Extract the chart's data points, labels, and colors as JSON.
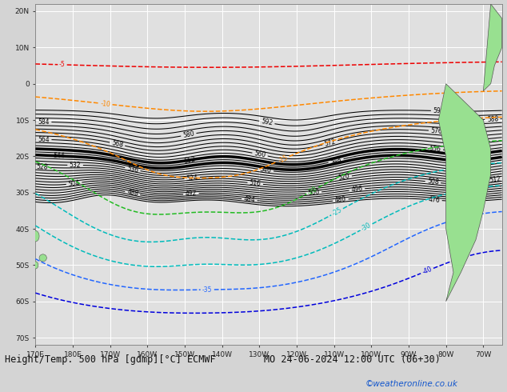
{
  "title": "Height/Temp. 500 hPa [gdmp][°C] ECMWF",
  "subtitle": "MO 24-06-2024 12:00 UTC (06+30)",
  "copyright": "©weatheronline.co.uk",
  "background_color": "#d4d4d4",
  "map_background": "#e0e0e0",
  "grid_color": "#ffffff",
  "figsize": [
    6.34,
    4.9
  ],
  "dpi": 100,
  "lon_min": -190,
  "lon_max": -65,
  "lat_min": -72,
  "lat_max": 22,
  "lon_ticks": [
    -190,
    -180,
    -170,
    -160,
    -150,
    -140,
    -130,
    -120,
    -110,
    -100,
    -90,
    -80,
    -70
  ],
  "lat_ticks": [
    -70,
    -60,
    -50,
    -40,
    -30,
    -20,
    -10,
    0,
    10,
    20
  ],
  "title_fontsize": 8.5,
  "axis_fontsize": 6.5
}
